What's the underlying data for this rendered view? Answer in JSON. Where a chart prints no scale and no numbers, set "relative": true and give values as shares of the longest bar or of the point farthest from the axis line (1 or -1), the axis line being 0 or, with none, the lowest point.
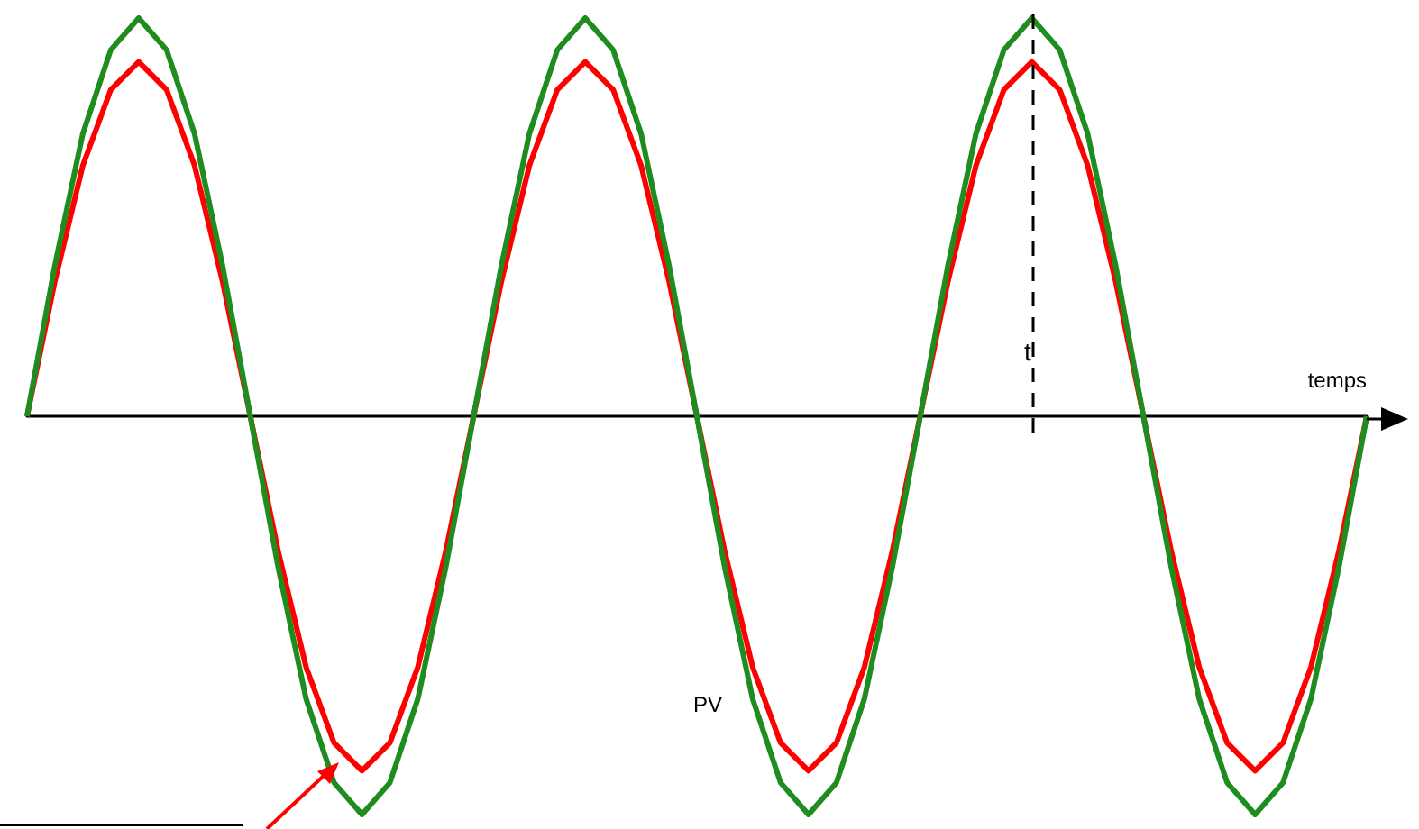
{
  "chart_data": {
    "type": "line",
    "relative": true,
    "xlabel": "temps",
    "categories": [
      null,
      null,
      null,
      null,
      null,
      null,
      null,
      null,
      null,
      null,
      null,
      null,
      null,
      null,
      null,
      null,
      null,
      null,
      null,
      null,
      null,
      null,
      null,
      null,
      null,
      null,
      null,
      null,
      null,
      null,
      null,
      null,
      null,
      null,
      null,
      null,
      null,
      null,
      null,
      null,
      null,
      null,
      null,
      null,
      null,
      null,
      null,
      null,
      null
    ],
    "grid": false,
    "legend": false,
    "marker": "none",
    "series": [
      {
        "color": "#1e8c1e",
        "values": [
          0,
          0.38,
          0.71,
          0.92,
          1,
          0.92,
          0.71,
          0.38,
          0,
          -0.38,
          -0.71,
          -0.92,
          -1,
          -0.92,
          -0.71,
          -0.38,
          0,
          0.38,
          0.71,
          0.92,
          1,
          0.92,
          0.71,
          0.38,
          0,
          -0.38,
          -0.71,
          -0.92,
          -1,
          -0.92,
          -0.71,
          -0.38,
          0,
          0.38,
          0.71,
          0.92,
          1,
          0.92,
          0.71,
          0.38,
          0,
          -0.38,
          -0.71,
          -0.92,
          -1,
          -0.92,
          -0.71,
          -0.38,
          0
        ]
      },
      {
        "name": "PV",
        "color": "#ff0000",
        "values": [
          0,
          0.34,
          0.63,
          0.82,
          0.89,
          0.82,
          0.63,
          0.34,
          0,
          -0.34,
          -0.63,
          -0.82,
          -0.89,
          -0.82,
          -0.63,
          -0.34,
          0,
          0.34,
          0.63,
          0.82,
          0.89,
          0.82,
          0.63,
          0.34,
          0,
          -0.34,
          -0.63,
          -0.82,
          -0.89,
          -0.82,
          -0.63,
          -0.34,
          0,
          0.34,
          0.63,
          0.82,
          0.89,
          0.82,
          0.63,
          0.34,
          0,
          -0.34,
          -0.63,
          -0.82,
          -0.89,
          -0.82,
          -0.63,
          -0.34,
          0
        ]
      }
    ],
    "annotations": [
      "t"
    ]
  }
}
